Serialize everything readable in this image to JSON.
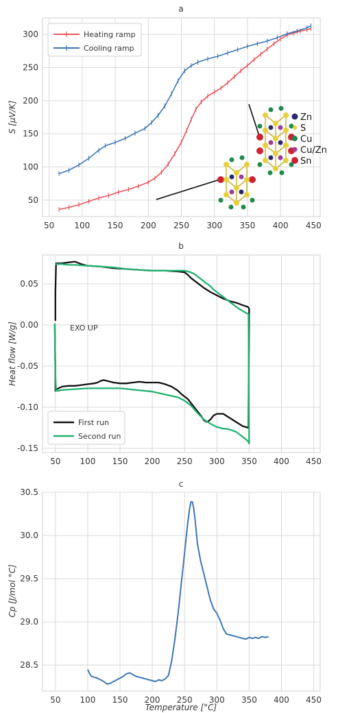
{
  "chart_data": [
    {
      "type": "line",
      "title": "a",
      "xlabel": "",
      "ylabel": "S [μV/K]",
      "xlim": [
        40,
        460
      ],
      "ylim": [
        25,
        325
      ],
      "xticks": [
        50,
        100,
        150,
        200,
        250,
        300,
        350,
        400,
        450
      ],
      "yticks": [
        50,
        100,
        150,
        200,
        250,
        300
      ],
      "grid": true,
      "legend_position": "top-left",
      "series": [
        {
          "name": "Heating ramp",
          "color": "#e8545a",
          "marker": "errorbar",
          "x": [
            65,
            80,
            95,
            110,
            125,
            140,
            155,
            170,
            185,
            200,
            210,
            220,
            230,
            240,
            250,
            258,
            265,
            272,
            280,
            290,
            300,
            310,
            320,
            330,
            340,
            350,
            360,
            370,
            380,
            390,
            400,
            410,
            420,
            430,
            440,
            446
          ],
          "y": [
            36,
            39,
            43,
            48,
            53,
            57,
            62,
            66,
            71,
            77,
            83,
            92,
            104,
            120,
            137,
            155,
            172,
            187,
            198,
            207,
            213,
            219,
            227,
            236,
            245,
            253,
            262,
            270,
            278,
            286,
            293,
            299,
            302,
            305,
            307,
            309
          ]
        },
        {
          "name": "Cooling ramp",
          "color": "#3c76b4",
          "marker": "errorbar",
          "x": [
            65,
            80,
            95,
            110,
            125,
            135,
            150,
            165,
            180,
            195,
            205,
            215,
            225,
            235,
            245,
            255,
            265,
            275,
            290,
            305,
            320,
            335,
            350,
            365,
            380,
            395,
            410,
            425,
            440,
            446
          ],
          "y": [
            90,
            95,
            103,
            113,
            125,
            132,
            137,
            143,
            151,
            158,
            167,
            178,
            192,
            210,
            230,
            245,
            253,
            258,
            263,
            267,
            272,
            277,
            282,
            286,
            290,
            295,
            301,
            305,
            310,
            313
          ]
        }
      ],
      "annotations": [
        "Zn",
        "S",
        "Cu",
        "Cu/Zn",
        "Sn"
      ]
    },
    {
      "type": "line",
      "title": "b",
      "xlabel": "",
      "ylabel": "Heat flow [W/g]",
      "xlim": [
        30,
        460
      ],
      "ylim": [
        -0.155,
        0.085
      ],
      "xticks": [
        50,
        100,
        150,
        200,
        250,
        300,
        350,
        400,
        450
      ],
      "yticks": [
        -0.15,
        -0.1,
        -0.05,
        0.0,
        0.05
      ],
      "grid": true,
      "legend_position": "bottom-left",
      "annotation": "EXO UP",
      "series": [
        {
          "name": "First run",
          "color": "#111111",
          "x": [
            50,
            50,
            51,
            60,
            70,
            80,
            90,
            100,
            120,
            140,
            160,
            180,
            200,
            220,
            240,
            250,
            255,
            260,
            270,
            280,
            290,
            300,
            310,
            320,
            330,
            340,
            348,
            349,
            350,
            349,
            340,
            330,
            320,
            310,
            300,
            295,
            290,
            285,
            280,
            275,
            270,
            265,
            260,
            255,
            250,
            245,
            240,
            230,
            220,
            210,
            200,
            190,
            180,
            170,
            160,
            150,
            140,
            130,
            125,
            120,
            115,
            110,
            100,
            90,
            80,
            70,
            60,
            55,
            52,
            51,
            50,
            50,
            49
          ],
          "y": [
            0.005,
            0.04,
            0.075,
            0.075,
            0.076,
            0.077,
            0.074,
            0.072,
            0.071,
            0.069,
            0.068,
            0.067,
            0.066,
            0.066,
            0.065,
            0.064,
            0.061,
            0.057,
            0.051,
            0.045,
            0.04,
            0.036,
            0.032,
            0.029,
            0.027,
            0.024,
            0.022,
            0.021,
            0.02,
            -0.125,
            -0.123,
            -0.118,
            -0.113,
            -0.108,
            -0.108,
            -0.11,
            -0.115,
            -0.118,
            -0.116,
            -0.11,
            -0.105,
            -0.1,
            -0.095,
            -0.09,
            -0.087,
            -0.084,
            -0.08,
            -0.075,
            -0.072,
            -0.07,
            -0.07,
            -0.07,
            -0.069,
            -0.07,
            -0.071,
            -0.071,
            -0.07,
            -0.068,
            -0.067,
            -0.068,
            -0.07,
            -0.071,
            -0.072,
            -0.073,
            -0.074,
            -0.074,
            -0.075,
            -0.077,
            -0.078,
            -0.079,
            -0.08,
            -0.06,
            0.0
          ]
        },
        {
          "name": "Second run",
          "color": "#22b070",
          "x": [
            49,
            50,
            51,
            55,
            60,
            80,
            100,
            150,
            200,
            240,
            250,
            260,
            270,
            280,
            290,
            300,
            310,
            320,
            330,
            340,
            348,
            349,
            350,
            349,
            340,
            330,
            320,
            310,
            300,
            295,
            290,
            285,
            280,
            275,
            270,
            265,
            260,
            255,
            250,
            245,
            240,
            230,
            220,
            210,
            200,
            180,
            160,
            140,
            120,
            100,
            80,
            70,
            60,
            55,
            52,
            51,
            50
          ],
          "y": [
            0.002,
            -0.06,
            -0.08,
            -0.08,
            -0.079,
            -0.078,
            -0.077,
            -0.077,
            -0.081,
            -0.088,
            -0.092,
            -0.098,
            -0.107,
            -0.115,
            -0.12,
            -0.124,
            -0.126,
            -0.127,
            -0.13,
            -0.136,
            -0.141,
            -0.143,
            -0.144,
            0.013,
            0.017,
            0.022,
            0.028,
            0.034,
            0.04,
            0.043,
            0.047,
            0.05,
            0.053,
            0.056,
            0.059,
            0.062,
            0.064,
            0.065,
            0.066,
            0.066,
            0.066,
            0.066,
            0.066,
            0.066,
            0.066,
            0.067,
            0.068,
            0.07,
            0.071,
            0.072,
            0.073,
            0.073,
            0.074,
            0.074,
            0.074,
            0.074,
            0.073
          ]
        }
      ]
    },
    {
      "type": "line",
      "title": "c",
      "xlabel": "Temperature [°C]",
      "ylabel": "Cp [J/mol °C]",
      "xlim": [
        30,
        460
      ],
      "ylim": [
        28.2,
        30.5
      ],
      "xticks": [
        50,
        100,
        150,
        200,
        250,
        300,
        350,
        400,
        450
      ],
      "yticks": [
        28.5,
        29.0,
        29.5,
        30.0,
        30.5
      ],
      "grid": true,
      "series": [
        {
          "name": "",
          "color": "#3c76b4",
          "x": [
            100,
            103,
            106,
            110,
            115,
            120,
            125,
            130,
            135,
            140,
            145,
            150,
            155,
            160,
            165,
            170,
            175,
            180,
            185,
            190,
            195,
            200,
            205,
            210,
            215,
            220,
            225,
            230,
            235,
            240,
            245,
            250,
            255,
            258,
            260,
            262,
            264,
            266,
            268,
            270,
            275,
            280,
            285,
            290,
            295,
            300,
            305,
            310,
            315,
            320,
            325,
            330,
            335,
            340,
            345,
            350,
            355,
            360,
            365,
            370,
            375,
            380
          ],
          "y": [
            28.45,
            28.4,
            28.37,
            28.36,
            28.35,
            28.33,
            28.31,
            28.28,
            28.29,
            28.31,
            28.33,
            28.35,
            28.37,
            28.4,
            28.41,
            28.39,
            28.37,
            28.36,
            28.35,
            28.34,
            28.33,
            28.32,
            28.31,
            28.33,
            28.32,
            28.34,
            28.38,
            28.55,
            28.8,
            29.1,
            29.45,
            29.8,
            30.15,
            30.32,
            30.39,
            30.39,
            30.32,
            30.2,
            30.05,
            29.9,
            29.7,
            29.55,
            29.4,
            29.25,
            29.15,
            29.1,
            29.02,
            28.92,
            28.86,
            28.85,
            28.84,
            28.83,
            28.82,
            28.81,
            28.8,
            28.82,
            28.81,
            28.82,
            28.81,
            28.83,
            28.82,
            28.83
          ]
        }
      ]
    }
  ]
}
